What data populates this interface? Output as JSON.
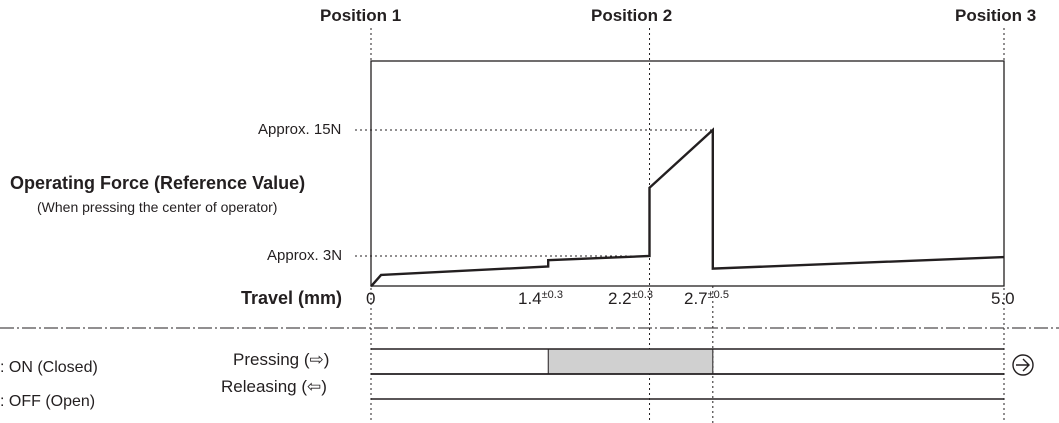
{
  "chart_data": {
    "type": "line",
    "positions": [
      "Position 1",
      "Position 2",
      "Position 3"
    ],
    "ylabel": "Operating Force (Reference Value)",
    "ylabel_note": "(When pressing the center of operator)",
    "y_reference_labels": [
      "Approx. 15N",
      "Approx. 3N"
    ],
    "y_reference_values": [
      15,
      3
    ],
    "xlabel": "Travel (mm)",
    "xlim": [
      0,
      5.0
    ],
    "x_ticks": [
      {
        "value": 0,
        "label": "0",
        "tolerance": ""
      },
      {
        "value": 1.4,
        "label": "1.4",
        "tolerance": "±0.3"
      },
      {
        "value": 2.2,
        "label": "2.2",
        "tolerance": "±0.3"
      },
      {
        "value": 2.7,
        "label": "2.7",
        "tolerance": "±0.5"
      },
      {
        "value": 5.0,
        "label": "5.0",
        "tolerance": ""
      }
    ],
    "series": [
      {
        "x": [
          0,
          0.08,
          1.4,
          1.4,
          2.2,
          2.2,
          2.7,
          2.7,
          5.0
        ],
        "y": [
          0.1,
          1.2,
          2.0,
          2.6,
          3.0,
          9.5,
          15.0,
          1.8,
          2.9
        ]
      }
    ],
    "switch_timing": {
      "rows": [
        {
          "label": "Pressing (⇨)",
          "on_start": 1.4,
          "on_end": 2.7
        },
        {
          "label": "Releasing (⇦)",
          "on_start": null,
          "on_end": null
        }
      ],
      "legend": [
        ": ON (Closed)",
        ": OFF (Open)"
      ],
      "on_color": "#d0d0d0",
      "end_icon": "right-arrow-circle-icon"
    }
  }
}
